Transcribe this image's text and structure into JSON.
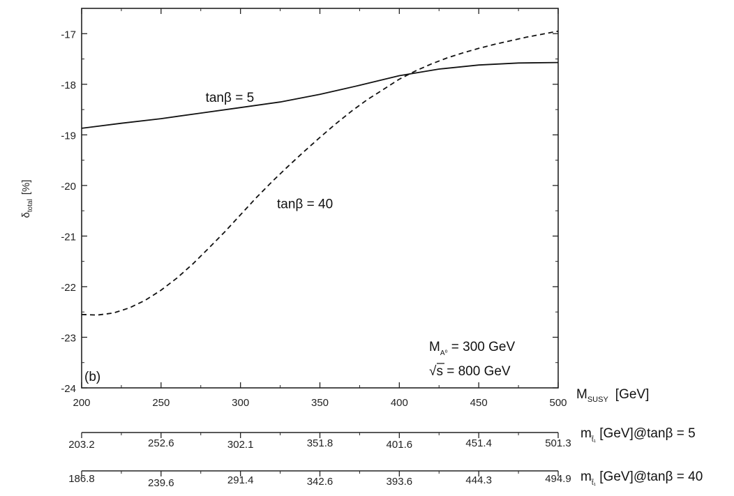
{
  "chart_data": {
    "type": "line",
    "panel_label": "(b)",
    "xlabel": "M",
    "xlabel_sub": "SUSY",
    "xlabel_unit": "[GeV]",
    "ylabel": "δ",
    "ylabel_sub": "total",
    "ylabel_unit": "[%]",
    "xlim": [
      200,
      500
    ],
    "ylim": [
      -24,
      -16.5
    ],
    "x_ticks": [
      200,
      250,
      300,
      350,
      400,
      450,
      500
    ],
    "x_tick_labels": [
      "200",
      "250",
      "300",
      "350",
      "400",
      "450",
      "500"
    ],
    "y_ticks": [
      -24,
      -23,
      -22,
      -21,
      -20,
      -19,
      -18,
      -17
    ],
    "y_tick_labels": [
      "-24",
      "-23",
      "-22",
      "-21",
      "-20",
      "-19",
      "-18",
      "-17"
    ],
    "series": [
      {
        "name": "tanβ = 5",
        "style": "solid",
        "x": [
          200,
          225,
          250,
          275,
          300,
          325,
          350,
          375,
          400,
          425,
          450,
          475,
          500
        ],
        "y": [
          -18.87,
          -18.77,
          -18.68,
          -18.57,
          -18.46,
          -18.35,
          -18.2,
          -18.02,
          -17.83,
          -17.7,
          -17.62,
          -17.58,
          -17.57
        ]
      },
      {
        "name": "tanβ = 40",
        "style": "dashed",
        "x": [
          200,
          210,
          220,
          230,
          240,
          250,
          260,
          270,
          280,
          290,
          300,
          310,
          320,
          330,
          340,
          350,
          360,
          370,
          380,
          390,
          400,
          410,
          420,
          430,
          440,
          450,
          460,
          470,
          480,
          490,
          500
        ],
        "y": [
          -22.55,
          -22.56,
          -22.52,
          -22.42,
          -22.27,
          -22.07,
          -21.83,
          -21.55,
          -21.24,
          -20.92,
          -20.58,
          -20.24,
          -19.92,
          -19.62,
          -19.33,
          -19.05,
          -18.78,
          -18.53,
          -18.3,
          -18.1,
          -17.9,
          -17.74,
          -17.6,
          -17.48,
          -17.38,
          -17.29,
          -17.21,
          -17.14,
          -17.07,
          -17.01,
          -16.95
        ]
      }
    ],
    "series_labels": [
      {
        "text": "tanβ = 5",
        "x": 278,
        "y": -18.35
      },
      {
        "text": "tanβ = 40",
        "x": 323,
        "y": -20.45
      }
    ],
    "annotations": {
      "line1_pre": "M",
      "line1_sub": "A⁰",
      "line1_post": " = 300 GeV",
      "line2_root": "√",
      "line2_s": "s",
      "line2_post": " = 800 GeV"
    },
    "secondary_axes": [
      {
        "label_pre": "m",
        "label_sub": "t̃₁",
        "label_post": " [GeV]@tanβ = 5",
        "tick_labels": [
          "203.2",
          "252.6",
          "302.1",
          "351.8",
          "401.6",
          "451.4",
          "501.3"
        ]
      },
      {
        "label_pre": "m",
        "label_sub": "t̃₁",
        "label_post": " [GeV]@tanβ = 40",
        "tick_labels": [
          "186.8",
          "239.6",
          "291.4",
          "342.6",
          "393.6",
          "444.3",
          "494.9"
        ]
      }
    ]
  }
}
